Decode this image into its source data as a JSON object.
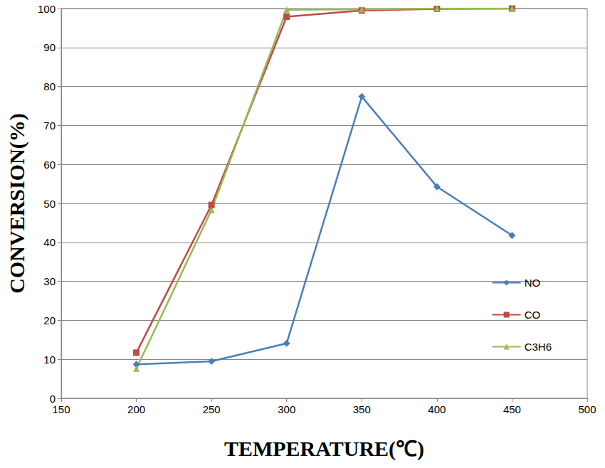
{
  "chart_data": {
    "type": "line",
    "x_label": "TEMPERATURE(℃)",
    "y_label": "CONVERSION(%)",
    "xlim": [
      150,
      500
    ],
    "xticks": [
      150,
      200,
      250,
      300,
      350,
      400,
      450,
      500
    ],
    "ylim": [
      0,
      100
    ],
    "yticks": [
      0,
      10,
      20,
      30,
      40,
      50,
      60,
      70,
      80,
      90,
      100
    ],
    "grid": true,
    "legend": "right",
    "series": [
      {
        "name": "NO",
        "color": "#4a7ebb",
        "marker": "diamond",
        "line_style": "solid",
        "x": [
          200,
          250,
          300,
          350,
          400,
          450
        ],
        "values": [
          8.7,
          9.5,
          14.1,
          77.4,
          54.3,
          41.8
        ]
      },
      {
        "name": "CO",
        "color": "#be4b48",
        "marker": "square",
        "line_style": "solid",
        "x": [
          200,
          250,
          300,
          350,
          400,
          450
        ],
        "values": [
          11.7,
          49.6,
          97.9,
          99.5,
          99.9,
          100
        ]
      },
      {
        "name": "C3H6",
        "color": "#98b954",
        "marker": "triangle",
        "line_style": "solid",
        "x": [
          200,
          250,
          300,
          350,
          400,
          450
        ],
        "values": [
          7.6,
          48.3,
          99.7,
          99.8,
          100,
          100
        ]
      }
    ]
  }
}
